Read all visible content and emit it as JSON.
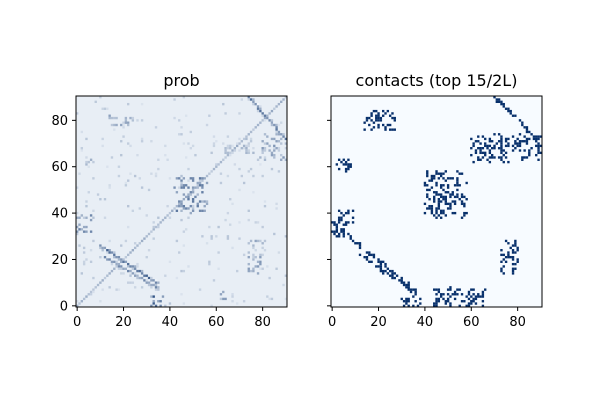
{
  "chart_data": [
    {
      "type": "heatmap",
      "title": "prob",
      "colormap": "Blues",
      "xlim": [
        0,
        91
      ],
      "ylim": [
        0,
        91
      ],
      "xticks": [
        0,
        20,
        40,
        60,
        80
      ],
      "yticks": [
        0,
        20,
        40,
        60,
        80
      ],
      "show_ytick_labels": true,
      "background_level": 0.04,
      "diagonal_level": 0.35,
      "contact_clusters": [
        {
          "region": "antiparallel",
          "x": [
            10,
            34
          ],
          "y": [
            10,
            26
          ],
          "intensity": 0.75
        },
        {
          "region": "antiparallel",
          "x": [
            12,
            34
          ],
          "y": [
            8,
            21
          ],
          "intensity": 0.55
        },
        {
          "region": "block",
          "x": [
            31,
            37
          ],
          "y": [
            0,
            4
          ],
          "intensity": 0.8
        },
        {
          "region": "block",
          "x": [
            0,
            6
          ],
          "y": [
            31,
            40
          ],
          "intensity": 0.55
        },
        {
          "region": "block",
          "x": [
            42,
            56
          ],
          "y": [
            40,
            56
          ],
          "intensity": 0.6
        },
        {
          "region": "antiparallel",
          "x": [
            74,
            90
          ],
          "y": [
            72,
            90
          ],
          "intensity": 0.7
        },
        {
          "region": "block",
          "x": [
            79,
            90
          ],
          "y": [
            63,
            74
          ],
          "intensity": 0.45
        },
        {
          "region": "block",
          "x": [
            73,
            80
          ],
          "y": [
            14,
            28
          ],
          "intensity": 0.45
        },
        {
          "region": "block",
          "x": [
            14,
            26
          ],
          "y": [
            77,
            82
          ],
          "intensity": 0.4
        },
        {
          "region": "block",
          "x": [
            63,
            76
          ],
          "y": [
            65,
            72
          ],
          "intensity": 0.3
        },
        {
          "region": "block",
          "x": [
            3,
            7
          ],
          "y": [
            60,
            64
          ],
          "intensity": 0.4
        },
        {
          "region": "block",
          "x": [
            62,
            64
          ],
          "y": [
            2,
            6
          ],
          "intensity": 0.45
        }
      ]
    },
    {
      "type": "heatmap",
      "title": "contacts (top 15/2L)",
      "colormap": "Blues",
      "xlim": [
        0,
        91
      ],
      "ylim": [
        0,
        91
      ],
      "xticks": [
        0,
        20,
        40,
        60,
        80
      ],
      "yticks": [
        0,
        20,
        40,
        60,
        80
      ],
      "show_ytick_labels": false,
      "background_level": 0.0,
      "diagonal_level": 0.0,
      "contact_clusters": [
        {
          "region": "antiparallel",
          "x": [
            8,
            34
          ],
          "y": [
            8,
            29
          ],
          "intensity": 1.0
        },
        {
          "region": "antiparallel",
          "x": [
            12,
            36
          ],
          "y": [
            6,
            22
          ],
          "intensity": 1.0
        },
        {
          "region": "block",
          "x": [
            30,
            38
          ],
          "y": [
            0,
            4
          ],
          "intensity": 1.0
        },
        {
          "region": "block",
          "x": [
            0,
            9
          ],
          "y": [
            30,
            42
          ],
          "intensity": 1.0
        },
        {
          "region": "block",
          "x": [
            40,
            58
          ],
          "y": [
            38,
            58
          ],
          "intensity": 1.0
        },
        {
          "region": "antiparallel",
          "x": [
            70,
            90
          ],
          "y": [
            70,
            90
          ],
          "intensity": 1.0
        },
        {
          "region": "block",
          "x": [
            78,
            90
          ],
          "y": [
            63,
            74
          ],
          "intensity": 1.0
        },
        {
          "region": "block",
          "x": [
            72,
            80
          ],
          "y": [
            14,
            28
          ],
          "intensity": 1.0
        },
        {
          "region": "block",
          "x": [
            14,
            28
          ],
          "y": [
            76,
            84
          ],
          "intensity": 1.0
        },
        {
          "region": "block",
          "x": [
            60,
            76
          ],
          "y": [
            62,
            74
          ],
          "intensity": 1.0
        },
        {
          "region": "block",
          "x": [
            2,
            8
          ],
          "y": [
            58,
            64
          ],
          "intensity": 1.0
        },
        {
          "region": "block",
          "x": [
            44,
            66
          ],
          "y": [
            0,
            8
          ],
          "intensity": 1.0
        }
      ]
    }
  ]
}
